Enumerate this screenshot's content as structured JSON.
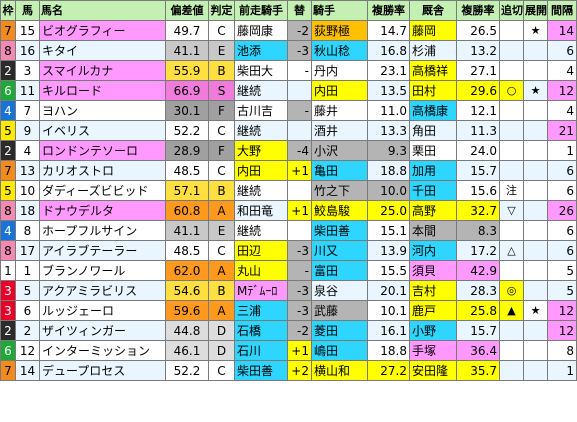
{
  "headers": [
    "枠",
    "馬",
    "馬名",
    "偏差値",
    "判定",
    "前走騎手",
    "替",
    "騎手",
    "複勝率",
    "厩舎",
    "複勝率",
    "追切",
    "展開",
    "間隔"
  ],
  "colors": {
    "frame": {
      "1": "#ffffff",
      "2": "#2b2b2b",
      "3": "#e8002a",
      "4": "#1873d8",
      "5": "#ffea00",
      "6": "#1fa838",
      "7": "#f28a1e",
      "8": "#f28ab2"
    },
    "frame_text": {
      "1": "#000000",
      "2": "#ffffff",
      "3": "#ffffff",
      "4": "#ffffff",
      "5": "#000000",
      "6": "#ffffff",
      "7": "#000000",
      "8": "#000000"
    },
    "rank": {
      "S": "#f07bda",
      "A": "#ff9a1e",
      "B": "#ffe040",
      "C": "#ffffff",
      "D": "#dddddd",
      "E": "#c8c8c8",
      "F": "#a0a0a0"
    },
    "header_bg": "#c4f0b4",
    "row_stripe": "#eaf6ff",
    "cyan": "#2ed5ff",
    "yellow": "#ffff00",
    "orange": "#ffc000",
    "pink": "#ff99ff",
    "gray": "#b4b4b4"
  },
  "rows": [
    {
      "waku": "7",
      "uma": "15",
      "name": "ビオグラフィー",
      "dev": "49.7",
      "rank": "C",
      "prev_jockey": "藤岡康",
      "change": "-2",
      "jockey": "荻野極",
      "jrate": "14.7",
      "stable": "藤岡",
      "srate": "26.5",
      "oikiri": "",
      "tenkai": "★",
      "interval": "14",
      "hl": {
        "name": "#ff99ff",
        "jockey": "#ffc000",
        "change": "#b4b4b4",
        "stable": "#ffff00",
        "interval": "#ff99ff"
      }
    },
    {
      "waku": "8",
      "uma": "16",
      "name": "キタイ",
      "dev": "41.1",
      "rank": "E",
      "prev_jockey": "池添",
      "change": "-3",
      "jockey": "秋山稔",
      "jrate": "16.8",
      "stable": "杉浦",
      "srate": "13.2",
      "oikiri": "",
      "tenkai": "",
      "interval": "6",
      "hl": {
        "prev_jockey": "#2ed5ff",
        "change": "#b4b4b4",
        "jockey": "#2ed5ff"
      }
    },
    {
      "waku": "2",
      "uma": "3",
      "name": "スマイルカナ",
      "dev": "55.9",
      "rank": "B",
      "prev_jockey": "柴田大",
      "change": "-",
      "jockey": "丹内",
      "jrate": "23.1",
      "stable": "高橋祥",
      "srate": "27.1",
      "oikiri": "",
      "tenkai": "",
      "interval": "4",
      "hl": {
        "name": "#ff99ff",
        "stable": "#ffff00"
      }
    },
    {
      "waku": "6",
      "uma": "11",
      "name": "キルロード",
      "dev": "66.9",
      "rank": "S",
      "prev_jockey": "継続",
      "change": "",
      "jockey": "内田",
      "jrate": "13.5",
      "stable": "田村",
      "srate": "29.6",
      "oikiri": "○",
      "tenkai": "★",
      "interval": "12",
      "hl": {
        "name": "#ff99ff",
        "jockey": "#ffff00",
        "stable": "#ffff00",
        "srate": "#ffff00",
        "oikiri": "#ffff00",
        "interval": "#ff99ff"
      }
    },
    {
      "waku": "4",
      "uma": "7",
      "name": "ヨハン",
      "dev": "30.1",
      "rank": "F",
      "prev_jockey": "古川吉",
      "change": "-",
      "jockey": "藤井",
      "jrate": "11.0",
      "stable": "高橋康",
      "srate": "12.1",
      "oikiri": "",
      "tenkai": "",
      "interval": "4",
      "hl": {
        "change": "#b4b4b4",
        "stable": "#2ed5ff"
      }
    },
    {
      "waku": "5",
      "uma": "9",
      "name": "イベリス",
      "dev": "52.2",
      "rank": "C",
      "prev_jockey": "継続",
      "change": "",
      "jockey": "酒井",
      "jrate": "13.3",
      "stable": "角田",
      "srate": "11.3",
      "oikiri": "",
      "tenkai": "",
      "interval": "21",
      "hl": {
        "interval": "#ff99ff"
      }
    },
    {
      "waku": "2",
      "uma": "4",
      "name": "ロンドンテソーロ",
      "dev": "28.9",
      "rank": "F",
      "prev_jockey": "大野",
      "change": "-4",
      "jockey": "小沢",
      "jrate": "9.3",
      "stable": "栗田",
      "srate": "24.0",
      "oikiri": "",
      "tenkai": "",
      "interval": "1",
      "hl": {
        "name": "#ff99ff",
        "prev_jockey": "#ffff00",
        "change": "#b4b4b4",
        "jockey": "#b4b4b4",
        "jrate": "#b4b4b4"
      }
    },
    {
      "waku": "7",
      "uma": "13",
      "name": "カリオストロ",
      "dev": "48.5",
      "rank": "C",
      "prev_jockey": "内田",
      "change": "+1",
      "jockey": "亀田",
      "jrate": "18.8",
      "stable": "加用",
      "srate": "15.7",
      "oikiri": "",
      "tenkai": "",
      "interval": "6",
      "hl": {
        "prev_jockey": "#ffff00",
        "change": "#ffff00",
        "jockey": "#2ed5ff",
        "stable": "#2ed5ff"
      }
    },
    {
      "waku": "5",
      "uma": "10",
      "name": "ダディーズビビッド",
      "dev": "57.1",
      "rank": "B",
      "prev_jockey": "継続",
      "change": "",
      "jockey": "竹之下",
      "jrate": "10.0",
      "stable": "千田",
      "srate": "15.6",
      "oikiri": "注",
      "tenkai": "",
      "interval": "6",
      "hl": {
        "jockey": "#b4b4b4",
        "jrate": "#b4b4b4",
        "stable": "#2ed5ff"
      }
    },
    {
      "waku": "8",
      "uma": "18",
      "name": "ドナウデルタ",
      "dev": "60.8",
      "rank": "A",
      "prev_jockey": "和田竜",
      "change": "+1",
      "jockey": "鮫島駿",
      "jrate": "25.0",
      "stable": "高野",
      "srate": "32.7",
      "oikiri": "▽",
      "tenkai": "",
      "interval": "26",
      "hl": {
        "name": "#ff99ff",
        "change": "#ffff00",
        "jockey": "#ffff00",
        "jrate": "#ffff00",
        "stable": "#ffff00",
        "srate": "#ffff00",
        "interval": "#ff99ff"
      }
    },
    {
      "waku": "4",
      "uma": "8",
      "name": "ホープフルサイン",
      "dev": "41.1",
      "rank": "E",
      "prev_jockey": "継続",
      "change": "",
      "jockey": "柴田善",
      "jrate": "15.1",
      "stable": "本間",
      "srate": "8.3",
      "oikiri": "",
      "tenkai": "",
      "interval": "6",
      "hl": {
        "jockey": "#2ed5ff",
        "stable": "#b4b4b4",
        "srate": "#b4b4b4"
      }
    },
    {
      "waku": "8",
      "uma": "17",
      "name": "アイラブテーラー",
      "dev": "48.5",
      "rank": "C",
      "prev_jockey": "田辺",
      "change": "-3",
      "jockey": "川又",
      "jrate": "13.9",
      "stable": "河内",
      "srate": "17.2",
      "oikiri": "△",
      "tenkai": "",
      "interval": "6",
      "hl": {
        "prev_jockey": "#ffff00",
        "change": "#b4b4b4",
        "jockey": "#2ed5ff",
        "stable": "#2ed5ff"
      }
    },
    {
      "waku": "1",
      "uma": "1",
      "name": "ブランノワール",
      "dev": "62.0",
      "rank": "A",
      "prev_jockey": "丸山",
      "change": "-",
      "jockey": "富田",
      "jrate": "15.5",
      "stable": "須貝",
      "srate": "42.9",
      "oikiri": "",
      "tenkai": "",
      "interval": "5",
      "hl": {
        "prev_jockey": "#ffff00",
        "change": "#b4b4b4",
        "jockey": "#2ed5ff",
        "stable": "#ff99ff",
        "srate": "#ff99ff"
      }
    },
    {
      "waku": "3",
      "uma": "5",
      "name": "アクアミラビリス",
      "dev": "54.6",
      "rank": "B",
      "prev_jockey": "Mﾃﾞﾑｰﾛ",
      "change": "-3",
      "jockey": "泉谷",
      "jrate": "20.1",
      "stable": "吉村",
      "srate": "28.3",
      "oikiri": "◎",
      "tenkai": "",
      "interval": "5",
      "hl": {
        "prev_jockey": "#ff99ff",
        "change": "#b4b4b4",
        "stable": "#ffff00",
        "oikiri": "#ffff00"
      }
    },
    {
      "waku": "3",
      "uma": "6",
      "name": "ルッジェーロ",
      "dev": "59.6",
      "rank": "A",
      "prev_jockey": "三浦",
      "change": "-3",
      "jockey": "武藤",
      "jrate": "10.1",
      "stable": "鹿戸",
      "srate": "25.8",
      "oikiri": "▲",
      "tenkai": "★",
      "interval": "12",
      "hl": {
        "prev_jockey": "#2ed5ff",
        "change": "#b4b4b4",
        "jockey": "#b4b4b4",
        "stable": "#ffff00",
        "srate": "#ffff00",
        "oikiri": "#ffff00",
        "interval": "#ff99ff"
      }
    },
    {
      "waku": "2",
      "uma": "2",
      "name": "ザイツィンガー",
      "dev": "44.8",
      "rank": "D",
      "prev_jockey": "石橋",
      "change": "-2",
      "jockey": "菱田",
      "jrate": "16.1",
      "stable": "小野",
      "srate": "15.7",
      "oikiri": "",
      "tenkai": "",
      "interval": "12",
      "hl": {
        "prev_jockey": "#2ed5ff",
        "change": "#b4b4b4",
        "jockey": "#2ed5ff",
        "stable": "#2ed5ff",
        "interval": "#ff99ff"
      }
    },
    {
      "waku": "6",
      "uma": "12",
      "name": "インターミッション",
      "dev": "46.1",
      "rank": "D",
      "prev_jockey": "石川",
      "change": "+1",
      "jockey": "嶋田",
      "jrate": "18.8",
      "stable": "手塚",
      "srate": "36.4",
      "oikiri": "",
      "tenkai": "",
      "interval": "8",
      "hl": {
        "prev_jockey": "#2ed5ff",
        "change": "#ffff00",
        "jockey": "#2ed5ff",
        "stable": "#ff99ff",
        "srate": "#ff99ff"
      }
    },
    {
      "waku": "7",
      "uma": "14",
      "name": "デュープロセス",
      "dev": "52.2",
      "rank": "C",
      "prev_jockey": "柴田善",
      "change": "+2",
      "jockey": "横山和",
      "jrate": "27.2",
      "stable": "安田隆",
      "srate": "35.7",
      "oikiri": "",
      "tenkai": "",
      "interval": "1",
      "hl": {
        "prev_jockey": "#2ed5ff",
        "change": "#ffff00",
        "jockey": "#ffff00",
        "jrate": "#ffff00",
        "stable": "#ffff00",
        "srate": "#ffff00"
      }
    }
  ]
}
